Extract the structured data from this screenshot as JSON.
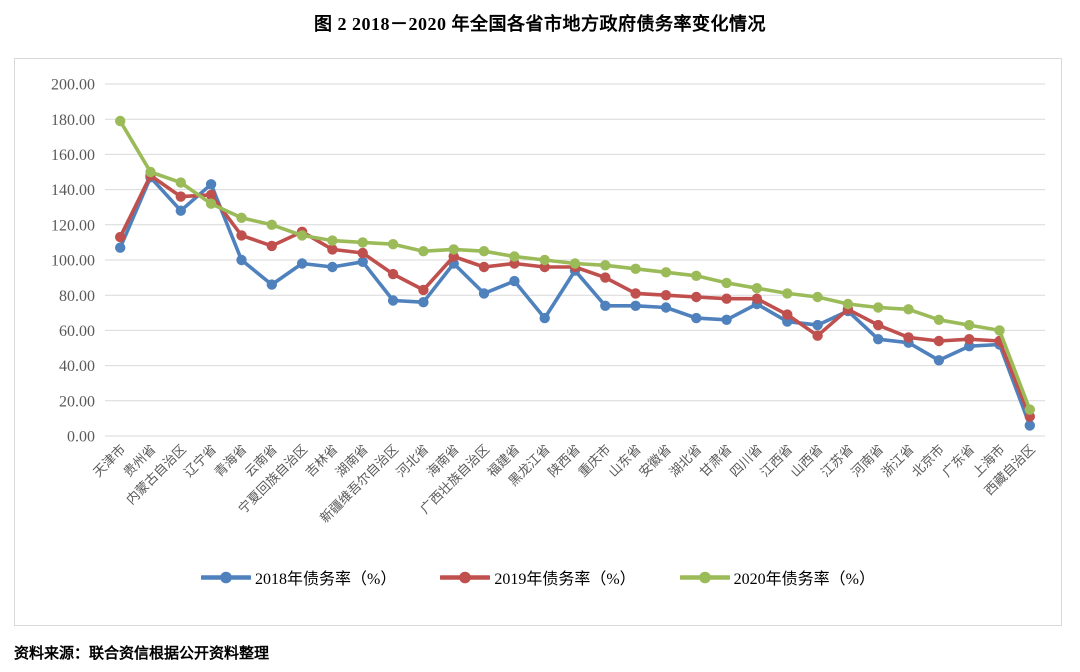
{
  "title": "图 2  2018－2020 年全国各省市地方政府债务率变化情况",
  "source_note": "资料来源：联合资信根据公开资料整理",
  "colors": {
    "grid": "#d9d9d9",
    "frame_border": "#d9d9d9",
    "axis_text": "#595959",
    "series_2018": "#4F81BD",
    "series_2019": "#C0504D",
    "series_2020": "#9BBB59"
  },
  "chart_data": {
    "type": "line",
    "title": "图 2  2018－2020 年全国各省市地方政府债务率变化情况",
    "xlabel": "",
    "ylabel": "",
    "ylim": [
      0,
      200
    ],
    "ytick_step": 20,
    "y_ticks": [
      "0.00",
      "20.00",
      "40.00",
      "60.00",
      "80.00",
      "100.00",
      "120.00",
      "140.00",
      "160.00",
      "180.00",
      "200.00"
    ],
    "grid": "horizontal",
    "legend_position": "bottom",
    "categories": [
      "天津市",
      "贵州省",
      "内蒙古自治区",
      "辽宁省",
      "青海省",
      "云南省",
      "宁夏回族自治区",
      "吉林省",
      "湖南省",
      "新疆维吾尔自治区",
      "河北省",
      "海南省",
      "广西壮族自治区",
      "福建省",
      "黑龙江省",
      "陕西省",
      "重庆市",
      "山东省",
      "安徽省",
      "湖北省",
      "甘肃省",
      "四川省",
      "江西省",
      "山西省",
      "江苏省",
      "河南省",
      "浙江省",
      "北京市",
      "广东省",
      "上海市",
      "西藏自治区"
    ],
    "series": [
      {
        "name": "2018年债务率（%）",
        "color": "#4F81BD",
        "values": [
          107,
          147,
          128,
          143,
          100,
          86,
          98,
          96,
          99,
          77,
          76,
          98,
          81,
          88,
          67,
          94,
          74,
          74,
          73,
          67,
          66,
          75,
          65,
          63,
          71,
          55,
          53,
          43,
          51,
          52,
          6
        ]
      },
      {
        "name": "2019年债务率（%）",
        "color": "#C0504D",
        "values": [
          113,
          148,
          136,
          137,
          114,
          108,
          116,
          106,
          104,
          92,
          83,
          102,
          96,
          98,
          96,
          96,
          90,
          81,
          80,
          79,
          78,
          78,
          69,
          57,
          72,
          63,
          56,
          54,
          55,
          54,
          11
        ]
      },
      {
        "name": "2020年债务率（%）",
        "color": "#9BBB59",
        "values": [
          179,
          150,
          144,
          132,
          124,
          120,
          114,
          111,
          110,
          109,
          105,
          106,
          105,
          102,
          100,
          98,
          97,
          95,
          93,
          91,
          87,
          84,
          81,
          79,
          75,
          73,
          72,
          66,
          63,
          60,
          15
        ]
      }
    ]
  }
}
